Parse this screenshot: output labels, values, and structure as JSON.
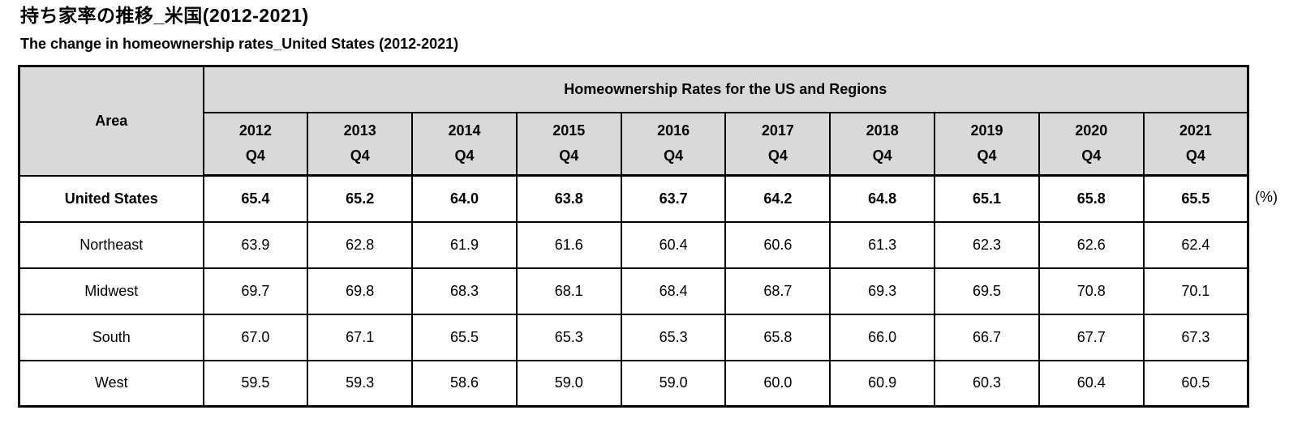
{
  "page": {
    "title_ja": "持ち家率の推移_米国(2012-2021)",
    "subtitle_en": "The change in homeownership rates_United States (2012-2021)"
  },
  "table": {
    "group_header": "Homeownership Rates for the US and Regions",
    "area_header": "Area",
    "unit_label": "(%)",
    "colors": {
      "header_bg": "#d9d9d9",
      "border": "#000000",
      "body_bg": "#ffffff"
    },
    "year_columns": [
      {
        "year": "2012",
        "quarter": "Q4"
      },
      {
        "year": "2013",
        "quarter": "Q4"
      },
      {
        "year": "2014",
        "quarter": "Q4"
      },
      {
        "year": "2015",
        "quarter": "Q4"
      },
      {
        "year": "2016",
        "quarter": "Q4"
      },
      {
        "year": "2017",
        "quarter": "Q4"
      },
      {
        "year": "2018",
        "quarter": "Q4"
      },
      {
        "year": "2019",
        "quarter": "Q4"
      },
      {
        "year": "2020",
        "quarter": "Q4"
      },
      {
        "year": "2021",
        "quarter": "Q4"
      }
    ],
    "rows": [
      {
        "area": "United States",
        "emphasis": true,
        "values": [
          "65.4",
          "65.2",
          "64.0",
          "63.8",
          "63.7",
          "64.2",
          "64.8",
          "65.1",
          "65.8",
          "65.5"
        ]
      },
      {
        "area": "Northeast",
        "emphasis": false,
        "values": [
          "63.9",
          "62.8",
          "61.9",
          "61.6",
          "60.4",
          "60.6",
          "61.3",
          "62.3",
          "62.6",
          "62.4"
        ]
      },
      {
        "area": "Midwest",
        "emphasis": false,
        "values": [
          "69.7",
          "69.8",
          "68.3",
          "68.1",
          "68.4",
          "68.7",
          "69.3",
          "69.5",
          "70.8",
          "70.1"
        ]
      },
      {
        "area": "South",
        "emphasis": false,
        "values": [
          "67.0",
          "67.1",
          "65.5",
          "65.3",
          "65.3",
          "65.8",
          "66.0",
          "66.7",
          "67.7",
          "67.3"
        ]
      },
      {
        "area": "West",
        "emphasis": false,
        "values": [
          "59.5",
          "59.3",
          "58.6",
          "59.0",
          "59.0",
          "60.0",
          "60.9",
          "60.3",
          "60.4",
          "60.5"
        ]
      }
    ]
  },
  "chart_data": {
    "type": "table",
    "title": "Homeownership Rates for the US and Regions",
    "title_ja": "持ち家率の推移_米国(2012-2021)",
    "subtitle": "The change in homeownership rates_United States (2012-2021)",
    "unit": "%",
    "categories": [
      "2012 Q4",
      "2013 Q4",
      "2014 Q4",
      "2015 Q4",
      "2016 Q4",
      "2017 Q4",
      "2018 Q4",
      "2019 Q4",
      "2020 Q4",
      "2021 Q4"
    ],
    "series": [
      {
        "name": "United States",
        "values": [
          65.4,
          65.2,
          64.0,
          63.8,
          63.7,
          64.2,
          64.8,
          65.1,
          65.8,
          65.5
        ]
      },
      {
        "name": "Northeast",
        "values": [
          63.9,
          62.8,
          61.9,
          61.6,
          60.4,
          60.6,
          61.3,
          62.3,
          62.6,
          62.4
        ]
      },
      {
        "name": "Midwest",
        "values": [
          69.7,
          69.8,
          68.3,
          68.1,
          68.4,
          68.7,
          69.3,
          69.5,
          70.8,
          70.1
        ]
      },
      {
        "name": "South",
        "values": [
          67.0,
          67.1,
          65.5,
          65.3,
          65.3,
          65.8,
          66.0,
          66.7,
          67.7,
          67.3
        ]
      },
      {
        "name": "West",
        "values": [
          59.5,
          59.3,
          58.6,
          59.0,
          59.0,
          60.0,
          60.9,
          60.3,
          60.4,
          60.5
        ]
      }
    ]
  }
}
